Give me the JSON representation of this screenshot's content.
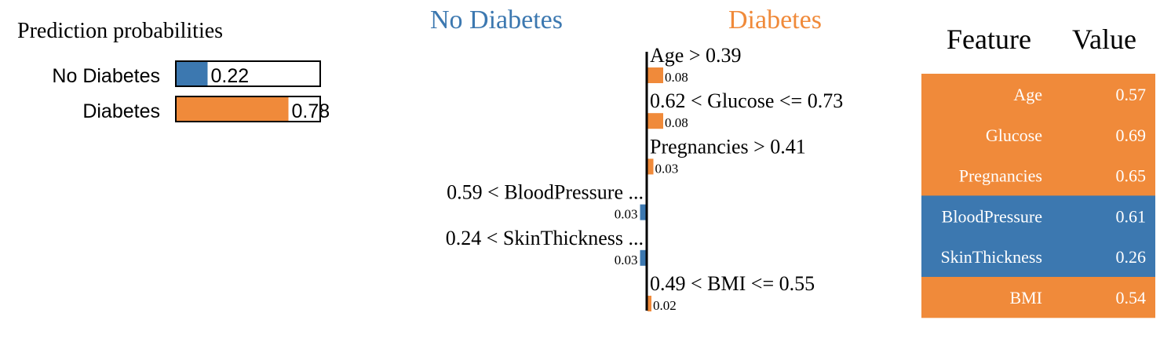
{
  "colors": {
    "negative": "#3c78b0",
    "positive": "#f08a3a",
    "text": "#000000",
    "table_text": "#ffffff"
  },
  "probabilities": {
    "title": "Prediction probabilities",
    "items": [
      {
        "label": "No Diabetes",
        "value": 0.22,
        "value_label": "0.22",
        "color": "negative"
      },
      {
        "label": "Diabetes",
        "value": 0.78,
        "value_label": "0.78",
        "color": "positive"
      }
    ]
  },
  "explanation": {
    "class_negative": "No Diabetes",
    "class_positive": "Diabetes"
  },
  "table": {
    "header_feature": "Feature",
    "header_value": "Value",
    "rows": [
      {
        "feature": "Age",
        "value": "0.57",
        "color": "positive"
      },
      {
        "feature": "Glucose",
        "value": "0.69",
        "color": "positive"
      },
      {
        "feature": "Pregnancies",
        "value": "0.65",
        "color": "positive"
      },
      {
        "feature": "BloodPressure",
        "value": "0.61",
        "color": "negative"
      },
      {
        "feature": "SkinThickness",
        "value": "0.26",
        "color": "negative"
      },
      {
        "feature": "BMI",
        "value": "0.54",
        "color": "positive"
      }
    ]
  },
  "chart_data": [
    {
      "type": "bar",
      "orientation": "horizontal",
      "title": "Prediction probabilities",
      "categories": [
        "No Diabetes",
        "Diabetes"
      ],
      "values": [
        0.22,
        0.78
      ],
      "xlim": [
        0,
        1
      ]
    },
    {
      "type": "bar",
      "orientation": "horizontal",
      "categories": [
        "Age > 0.39",
        "0.62 < Glucose <= 0.73",
        "Pregnancies > 0.41",
        "0.59 < BloodPressure ...",
        "0.24 < SkinThickness ...",
        "0.49 < BMI <= 0.55"
      ],
      "values": [
        0.08,
        0.08,
        0.03,
        -0.03,
        -0.03,
        0.02
      ],
      "value_labels": [
        "0.08",
        "0.08",
        "0.03",
        "0.03",
        "0.03",
        "0.02"
      ],
      "legend_left": "No Diabetes",
      "legend_right": "Diabetes"
    }
  ]
}
